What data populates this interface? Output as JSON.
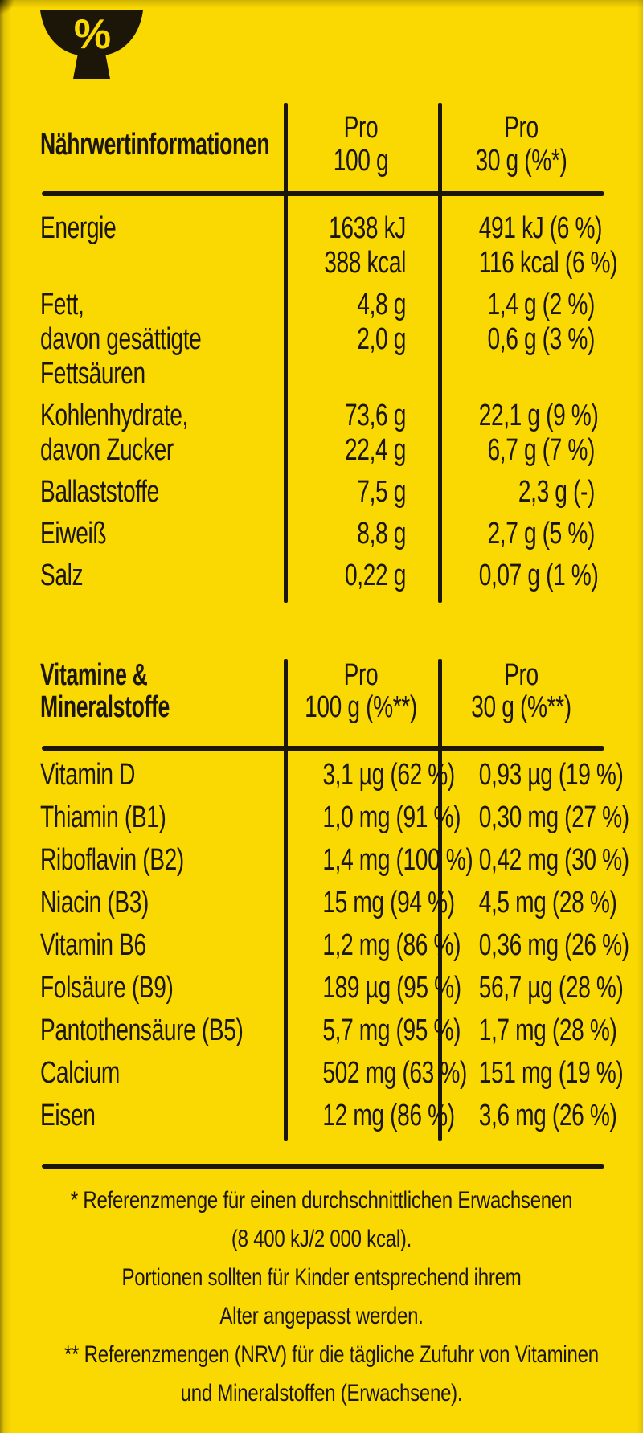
{
  "colors": {
    "background": "#FAD802",
    "ink": "#1B1607"
  },
  "icon": {
    "label": "percent-bowl-icon",
    "glyph": "%"
  },
  "nutrition_table": {
    "title": "Nährwertinformationen",
    "per_100g_header": [
      "Pro",
      "100 g"
    ],
    "per_30g_header": [
      "Pro",
      "30 g (%*)"
    ],
    "rows": [
      {
        "label": [
          "Energie"
        ],
        "per_100g": [
          "1638 kJ",
          "388 kcal"
        ],
        "per_30g": [
          "491 kJ (6 %)",
          "116 kcal (6 %)"
        ]
      },
      {
        "label": [
          "Fett,",
          "davon gesättigte",
          "Fettsäuren"
        ],
        "per_100g": [
          "4,8 g",
          "2,0 g"
        ],
        "per_30g": [
          "1,4 g (2 %)",
          "0,6 g (3 %)"
        ]
      },
      {
        "label": [
          "Kohlenhydrate,",
          "davon Zucker"
        ],
        "per_100g": [
          "73,6 g",
          "22,4 g"
        ],
        "per_30g": [
          "22,1 g (9 %)",
          "6,7 g (7 %)"
        ]
      },
      {
        "label": [
          "Ballaststoffe"
        ],
        "per_100g": [
          "7,5 g"
        ],
        "per_30g": [
          "2,3 g (-)"
        ]
      },
      {
        "label": [
          "Eiweiß"
        ],
        "per_100g": [
          "8,8 g"
        ],
        "per_30g": [
          "2,7 g (5 %)"
        ]
      },
      {
        "label": [
          "Salz"
        ],
        "per_100g": [
          "0,22 g"
        ],
        "per_30g": [
          "0,07 g (1 %)"
        ]
      }
    ]
  },
  "vitamins_table": {
    "title": [
      "Vitamine &",
      "Mineralstoffe"
    ],
    "per_100g_header": [
      "Pro",
      "100 g (%**)"
    ],
    "per_30g_header": [
      "Pro",
      "30 g (%**)"
    ],
    "rows": [
      {
        "label": "Vitamin D",
        "per_100g": "3,1 µg (62 %)",
        "per_30g": "0,93 µg (19 %)"
      },
      {
        "label": "Thiamin (B1)",
        "per_100g": "1,0 mg (91 %)",
        "per_30g": "0,30 mg (27 %)"
      },
      {
        "label": "Riboflavin (B2)",
        "per_100g": "1,4 mg (100 %)",
        "per_30g": "0,42 mg (30 %)"
      },
      {
        "label": "Niacin (B3)",
        "per_100g": "15 mg (94 %)",
        "per_30g": "4,5 mg (28 %)"
      },
      {
        "label": "Vitamin B6",
        "per_100g": "1,2 mg (86 %)",
        "per_30g": "0,36 mg (26 %)"
      },
      {
        "label": "Folsäure (B9)",
        "per_100g": "189 µg (95 %)",
        "per_30g": "56,7 µg (28 %)"
      },
      {
        "label": "Pantothensäure (B5)",
        "per_100g": "5,7 mg (95 %)",
        "per_30g": "1,7 mg (28 %)"
      },
      {
        "label": "Calcium",
        "per_100g": "502 mg (63 %)",
        "per_30g": "151 mg (19 %)"
      },
      {
        "label": "Eisen",
        "per_100g": "12 mg (86 %)",
        "per_30g": "3,6 mg (26 %)"
      }
    ]
  },
  "footnotes": [
    "* Referenzmenge für einen durchschnittlichen Erwachsenen",
    "(8 400 kJ/2 000 kcal).",
    "Portionen sollten für Kinder entsprechend ihrem",
    "Alter angepasst werden.",
    "** Referenzmengen (NRV) für die tägliche Zufuhr von Vitaminen",
    "und Mineralstoffen (Erwachsene)."
  ]
}
